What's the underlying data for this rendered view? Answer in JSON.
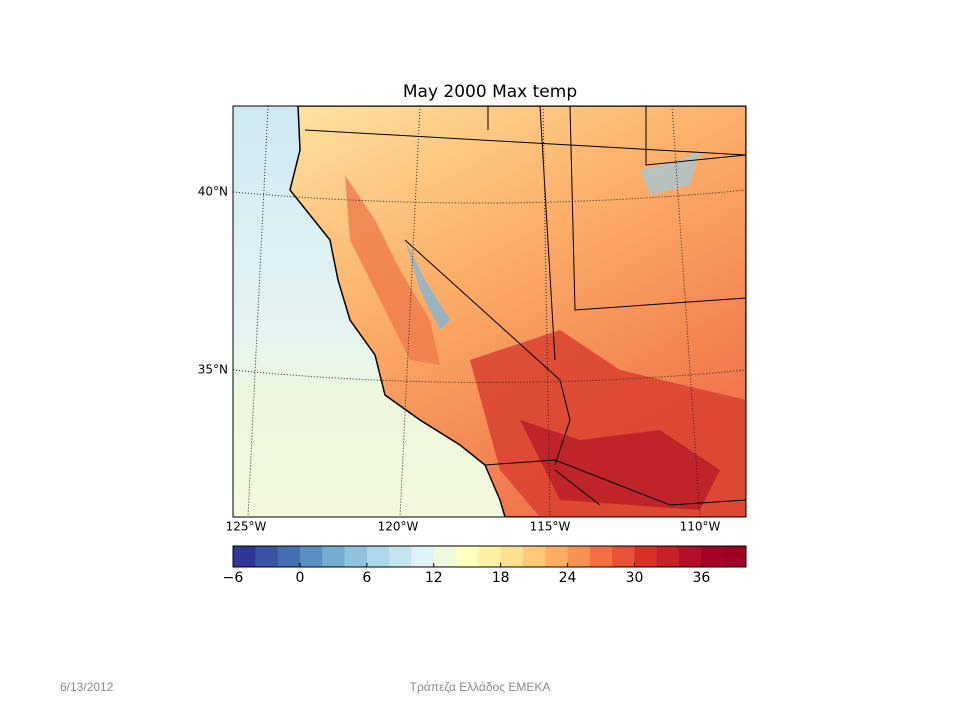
{
  "map": {
    "title": "May 2000 Max temp",
    "lat_labels": [
      "40°N",
      "35°N"
    ],
    "lon_labels": [
      "125°W",
      "120°W",
      "115°W",
      "110°W"
    ]
  },
  "colorbar": {
    "lim": [
      -6,
      40
    ],
    "ticks": [
      {
        "value": -6,
        "label": "−6"
      },
      0,
      6,
      12,
      18,
      24,
      30,
      36
    ],
    "colors": [
      "#313695",
      "#3a54a4",
      "#4470b1",
      "#598fc1",
      "#74add1",
      "#8fc3dd",
      "#abd9e9",
      "#c4e5f0",
      "#e0f3f8",
      "#eff9db",
      "#ffffbf",
      "#fff0a6",
      "#fee090",
      "#fdc878",
      "#fdae61",
      "#f99153",
      "#f46d43",
      "#e65138",
      "#d73027",
      "#c52127",
      "#b10f26",
      "#a50026",
      "#9e0026"
    ]
  },
  "footer": {
    "date": "6/13/2012",
    "text": "Τράπεζα Ελλάδος ΕΜΕΚΑ"
  }
}
